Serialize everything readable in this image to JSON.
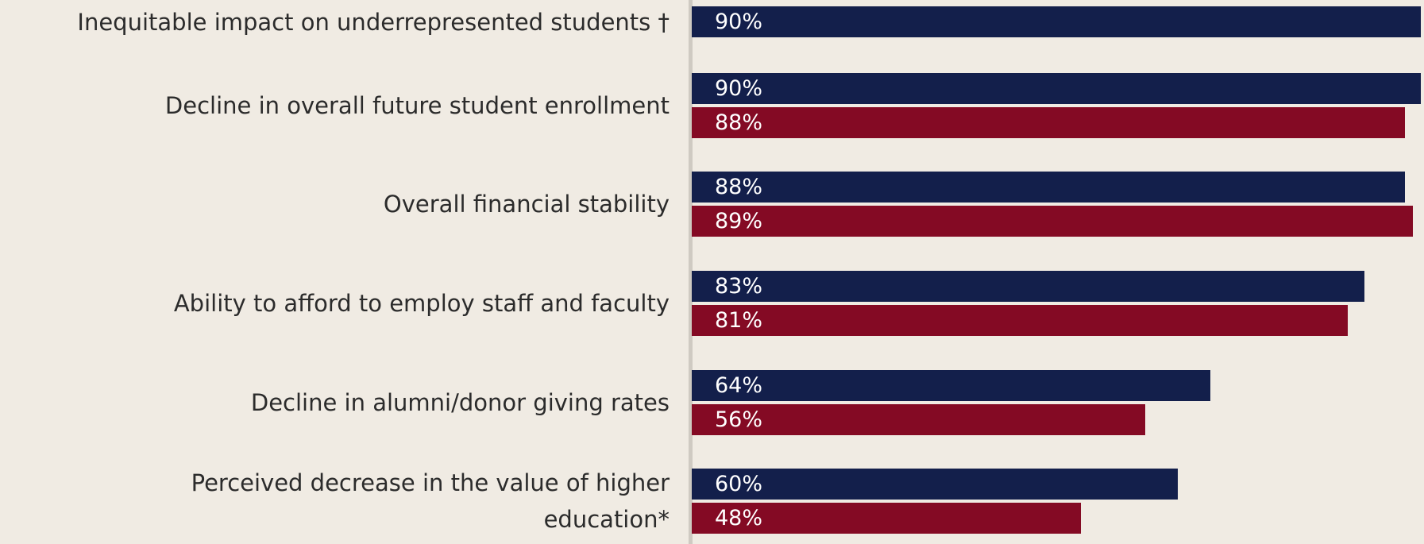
{
  "chart_data": {
    "type": "bar",
    "orientation": "horizontal",
    "categories": [
      "Inequitable impact on underrepresented students †",
      "Decline in overall future student enrollment",
      "Overall financial stability",
      "Ability to afford to employ staff and faculty",
      "Decline in alumni/donor giving rates",
      "Perceived decrease in the value of higher education*"
    ],
    "series": [
      {
        "color": "#131f4b",
        "values": [
          90,
          90,
          88,
          83,
          64,
          60
        ],
        "value_labels": [
          "90%",
          "90%",
          "88%",
          "83%",
          "64%",
          "60%"
        ]
      },
      {
        "color": "#840a24",
        "values": [
          null,
          88,
          89,
          81,
          56,
          48
        ],
        "value_labels": [
          null,
          "88%",
          "89%",
          "81%",
          "56%",
          "48%"
        ]
      }
    ]
  }
}
